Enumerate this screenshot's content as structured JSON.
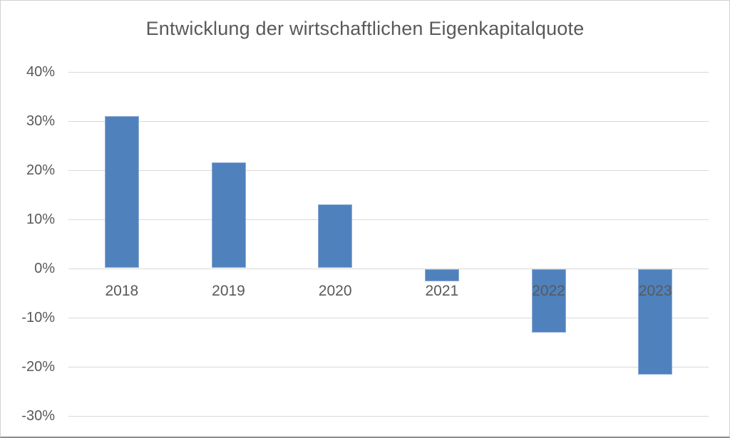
{
  "chart_data": {
    "type": "bar",
    "title": "Entwicklung der wirtschaftlichen Eigenkapitalquote",
    "categories": [
      "2018",
      "2019",
      "2020",
      "2021",
      "2022",
      "2023"
    ],
    "values": [
      31,
      21.5,
      13,
      -2.5,
      -13,
      -21.5
    ],
    "unit": "%",
    "xlabel": "",
    "ylabel": "",
    "ylim": [
      -30,
      40
    ],
    "yticks": [
      40,
      30,
      20,
      10,
      0,
      -10,
      -20,
      -30
    ],
    "ytick_labels": [
      "40%",
      "30%",
      "20%",
      "10%",
      "0%",
      "-10%",
      "-20%",
      "-30%"
    ],
    "grid": true,
    "legend": false,
    "bar_color": "#4f81bd",
    "bar_border_color": "#8fadd6",
    "gridline_color": "#d9d9d9",
    "text_color": "#595959",
    "background_color": "#ffffff"
  }
}
